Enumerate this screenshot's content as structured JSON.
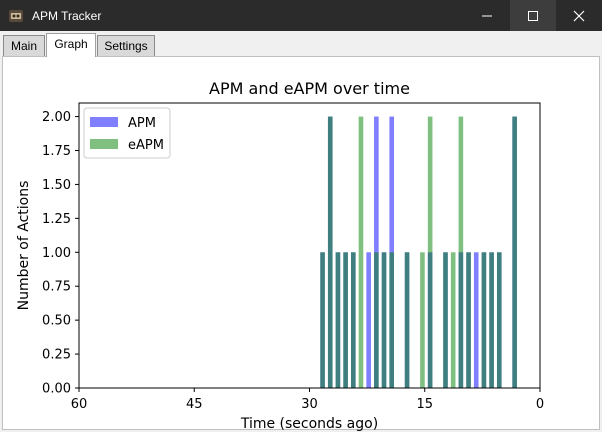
{
  "window": {
    "title": "APM Tracker"
  },
  "tabs": [
    {
      "label": "Main",
      "active": false
    },
    {
      "label": "Graph",
      "active": true
    },
    {
      "label": "Settings",
      "active": false
    }
  ],
  "icons": {
    "app": "apm-app-icon",
    "minimize": "minimize-icon",
    "maximize": "maximize-icon",
    "close": "close-icon"
  },
  "chart_data": {
    "type": "bar",
    "title": "APM and eAPM over time",
    "xlabel": "Time (seconds ago)",
    "ylabel": "Number of Actions",
    "xlim": [
      60,
      0
    ],
    "ylim": [
      0,
      2.1
    ],
    "x_reversed": true,
    "xticks": [
      60,
      45,
      30,
      15,
      0
    ],
    "yticks": [
      0.0,
      0.25,
      0.5,
      0.75,
      1.0,
      1.25,
      1.5,
      1.75,
      2.0
    ],
    "ytick_labels": [
      "0.00",
      "0.25",
      "0.50",
      "0.75",
      "1.00",
      "1.25",
      "1.50",
      "1.75",
      "2.00"
    ],
    "grid": false,
    "legend_position": "top-left",
    "bar_width": 0.6,
    "series": [
      {
        "name": "APM",
        "color": "#0000ff",
        "opacity": 0.5,
        "x": [
          28.3,
          27.3,
          26.3,
          25.3,
          24.3,
          22.3,
          21.3,
          20.3,
          19.3,
          17.3,
          14.3,
          12.3,
          10.3,
          9.3,
          8.3,
          7.3,
          6.3,
          5.3,
          3.3
        ],
        "values": [
          1,
          2,
          1,
          1,
          1,
          1,
          2,
          1,
          2,
          1,
          1,
          1,
          1,
          1,
          1,
          1,
          1,
          1,
          2
        ]
      },
      {
        "name": "eAPM",
        "color": "#008000",
        "opacity": 0.5,
        "x": [
          28.3,
          27.3,
          26.3,
          25.3,
          24.3,
          23.3,
          21.3,
          20.3,
          19.3,
          17.3,
          15.3,
          14.3,
          12.3,
          11.3,
          10.3,
          9.3,
          7.3,
          6.3,
          5.3,
          3.3
        ],
        "values": [
          1,
          2,
          1,
          1,
          1,
          2,
          1,
          1,
          1,
          1,
          1,
          2,
          1,
          1,
          2,
          1,
          1,
          1,
          1,
          2
        ]
      }
    ]
  }
}
